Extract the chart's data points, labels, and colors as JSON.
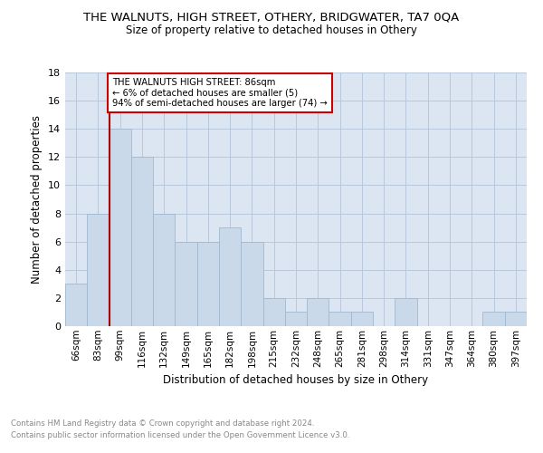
{
  "title": "THE WALNUTS, HIGH STREET, OTHERY, BRIDGWATER, TA7 0QA",
  "subtitle": "Size of property relative to detached houses in Othery",
  "xlabel": "Distribution of detached houses by size in Othery",
  "ylabel": "Number of detached properties",
  "categories": [
    "66sqm",
    "83sqm",
    "99sqm",
    "116sqm",
    "132sqm",
    "149sqm",
    "165sqm",
    "182sqm",
    "198sqm",
    "215sqm",
    "232sqm",
    "248sqm",
    "265sqm",
    "281sqm",
    "298sqm",
    "314sqm",
    "331sqm",
    "347sqm",
    "364sqm",
    "380sqm",
    "397sqm"
  ],
  "values": [
    3,
    8,
    14,
    12,
    8,
    6,
    6,
    7,
    6,
    2,
    1,
    2,
    1,
    1,
    0,
    2,
    0,
    0,
    0,
    1,
    1
  ],
  "bar_color": "#c9d9ea",
  "bar_edge_color": "#a0b8d0",
  "reference_line_x": 1.5,
  "reference_line_color": "#aa0000",
  "ylim": [
    0,
    18
  ],
  "yticks": [
    0,
    2,
    4,
    6,
    8,
    10,
    12,
    14,
    16,
    18
  ],
  "annotation_text": "THE WALNUTS HIGH STREET: 86sqm\n← 6% of detached houses are smaller (5)\n94% of semi-detached houses are larger (74) →",
  "annotation_box_color": "#ffffff",
  "annotation_box_edgecolor": "#cc0000",
  "footnote_line1": "Contains HM Land Registry data © Crown copyright and database right 2024.",
  "footnote_line2": "Contains public sector information licensed under the Open Government Licence v3.0.",
  "bg_color": "#dce6f2"
}
